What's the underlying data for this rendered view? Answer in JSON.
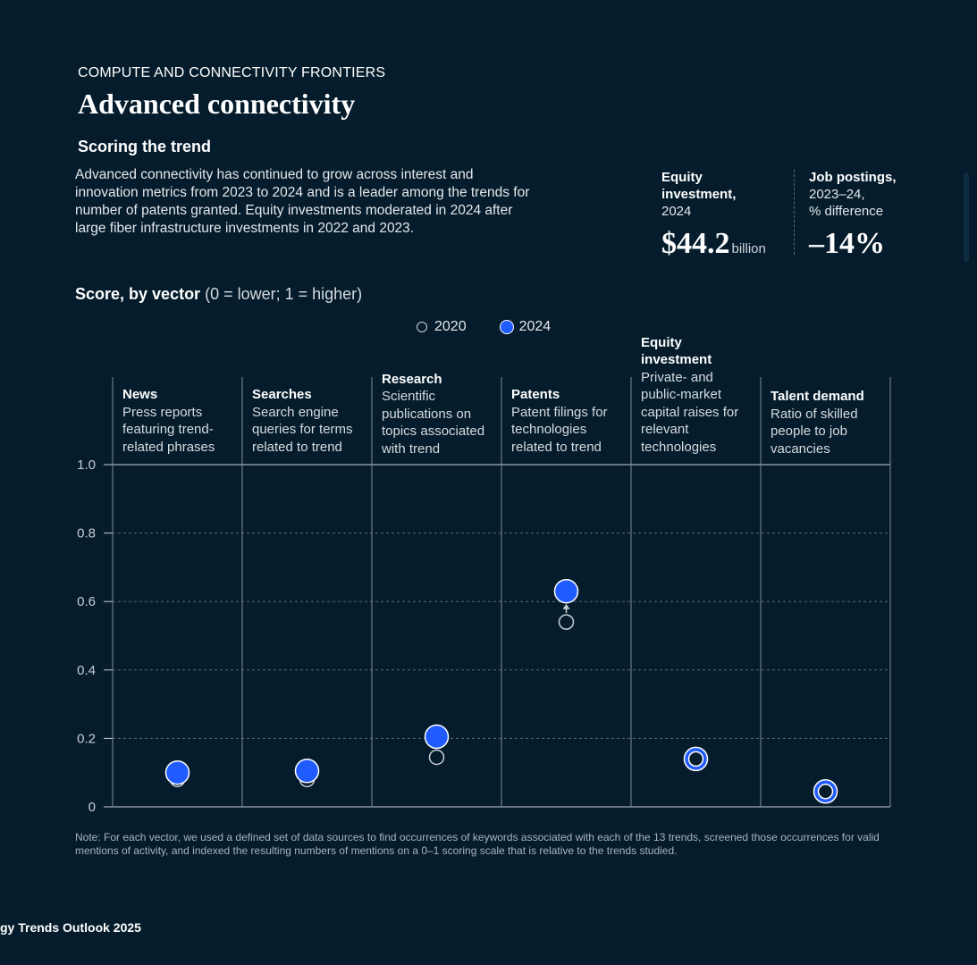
{
  "header": {
    "kicker": "COMPUTE AND CONNECTIVITY FRONTIERS",
    "title": "Advanced connectivity",
    "subtitle": "Scoring the trend",
    "description": "Advanced connectivity has continued to grow across interest and innovation metrics from 2023 to 2024 and is a leader among the trends for number of patents granted. Equity investments moderated in 2024 after large fiber infrastructure investments in 2022 and 2023."
  },
  "stats": {
    "equity": {
      "label_bold_1": "Equity",
      "label_bold_2": "investment,",
      "label_sub": "2024",
      "value": "$44.2",
      "unit": "billion"
    },
    "jobs": {
      "label_bold": "Job postings,",
      "label_sub_1": "2023–24,",
      "label_sub_2": "% difference",
      "value": "–14%"
    }
  },
  "score": {
    "title_bold": "Score, by vector",
    "title_light": "(0 = lower; 1 = higher)"
  },
  "legend": {
    "y2020": "2020",
    "y2024": "2024"
  },
  "columns": [
    {
      "heading": "News",
      "description": "Press reports featuring trend-related phrases"
    },
    {
      "heading": "Searches",
      "description": "Search engine queries for terms related to trend"
    },
    {
      "heading": "Research",
      "description": "Scientific publications on topics associated with trend"
    },
    {
      "heading": "Patents",
      "description": "Patent filings for technologies related to trend"
    },
    {
      "heading": "Equity investment",
      "description": "Private- and public-market capital raises for relevant technologies"
    },
    {
      "heading": "Talent demand",
      "description": "Ratio of skilled people to job vacancies"
    }
  ],
  "chart_data": {
    "type": "scatter",
    "title": "Score, by vector (0 = lower; 1 = higher)",
    "categories": [
      "News",
      "Searches",
      "Research",
      "Patents",
      "Equity investment",
      "Talent demand"
    ],
    "series": [
      {
        "name": "2020",
        "values": [
          0.08,
          0.08,
          0.145,
          0.54,
          0.14,
          0.045
        ]
      },
      {
        "name": "2024",
        "values": [
          0.1,
          0.105,
          0.205,
          0.63,
          0.14,
          0.045
        ]
      }
    ],
    "yticks": [
      "0",
      "0.2",
      "0.4",
      "0.6",
      "0.8",
      "1.0"
    ],
    "ylim": [
      0,
      1
    ],
    "colors": {
      "y2020": "#051c2c",
      "y2024": "#1f5bff",
      "grid": "#5a6b7a",
      "axis": "#c7cfd6"
    }
  },
  "note": "Note: For each vector, we used a defined set of data sources to find occurrences of keywords associated with each of the 13 trends, screened those occurrences for valid mentions of activity, and indexed the resulting numbers of mentions on a 0–1 scoring scale that is relative to the trends studied.",
  "footer": "gy Trends Outlook 2025"
}
